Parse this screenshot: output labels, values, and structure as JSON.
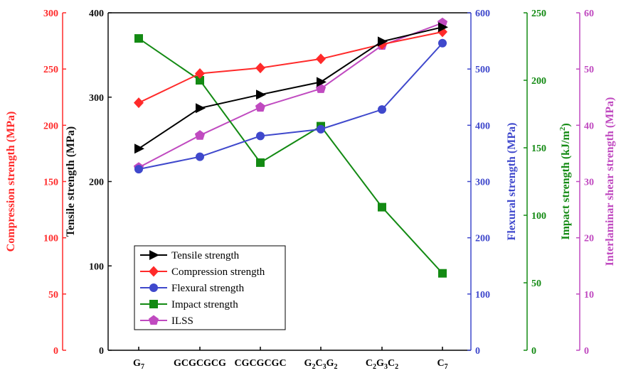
{
  "chart_data": {
    "type": "line",
    "categories": [
      "G",
      "GCGCGCG",
      "CGCGCGC",
      "G2C3G2",
      "C2G3C2",
      "C"
    ],
    "category_labels": [
      [
        {
          "t": "G",
          "s": false
        },
        {
          "t": "7",
          "s": true
        }
      ],
      [
        {
          "t": "GCGCGCG",
          "s": false
        }
      ],
      [
        {
          "t": "CGCGCGC",
          "s": false
        }
      ],
      [
        {
          "t": "G",
          "s": false
        },
        {
          "t": "2",
          "s": true
        },
        {
          "t": "C",
          "s": false
        },
        {
          "t": "3",
          "s": true
        },
        {
          "t": "G",
          "s": false
        },
        {
          "t": "2",
          "s": true
        }
      ],
      [
        {
          "t": "C",
          "s": false
        },
        {
          "t": "2",
          "s": true
        },
        {
          "t": "G",
          "s": false
        },
        {
          "t": "3",
          "s": true
        },
        {
          "t": "C",
          "s": false
        },
        {
          "t": "2",
          "s": true
        }
      ],
      [
        {
          "t": "C",
          "s": false
        },
        {
          "t": "7",
          "s": true
        }
      ]
    ],
    "axes": [
      {
        "id": "comp",
        "label": "Compression strength (MPa)",
        "color": "#ff2a2a",
        "min": 0,
        "max": 300,
        "ticks": [
          0,
          50,
          100,
          150,
          200,
          250,
          300
        ],
        "side": "left"
      },
      {
        "id": "tens",
        "label": "Tensile strength (MPa)",
        "color": "#111111",
        "min": 0,
        "max": 400,
        "ticks": [
          0,
          100,
          200,
          300,
          400
        ],
        "side": "left"
      },
      {
        "id": "flex",
        "label": "Flexural strength (MPa)",
        "color": "#3f48cc",
        "min": 0,
        "max": 600,
        "ticks": [
          0,
          100,
          200,
          300,
          400,
          500,
          600
        ],
        "side": "right"
      },
      {
        "id": "imp",
        "label": "Impact strength (kJ/m",
        "label_sup": "2",
        "label_tail": ")",
        "color": "#138a13",
        "min": 0,
        "max": 250,
        "ticks": [
          0,
          50,
          100,
          150,
          200,
          250
        ],
        "side": "right"
      },
      {
        "id": "ilss",
        "label": "Interlaminar shear strength (MPa)",
        "color": "#c04ac0",
        "min": 0,
        "max": 60,
        "ticks": [
          0,
          10,
          20,
          30,
          40,
          50,
          60
        ],
        "side": "right"
      }
    ],
    "series": [
      {
        "name": "Tensile strength",
        "axis": "tens",
        "color": "#000000",
        "marker": "triangle-right",
        "values": [
          239,
          287,
          303,
          318,
          366,
          383
        ]
      },
      {
        "name": "Compression strength",
        "axis": "comp",
        "color": "#ff2a2a",
        "marker": "diamond",
        "values": [
          220,
          246,
          251,
          259,
          272,
          283
        ]
      },
      {
        "name": "Flexural strength",
        "axis": "flex",
        "color": "#3f48cc",
        "marker": "circle",
        "values": [
          322,
          344,
          381,
          393,
          428,
          546
        ]
      },
      {
        "name": "Impact strength",
        "axis": "imp",
        "color": "#138a13",
        "marker": "square",
        "values": [
          231,
          200,
          139,
          166,
          106,
          57
        ]
      },
      {
        "name": "ILSS",
        "axis": "ilss",
        "color": "#c04ac0",
        "marker": "pentagon",
        "values": [
          32.5,
          38.2,
          43.2,
          46.5,
          54.2,
          58.2
        ]
      }
    ],
    "legend_position": "bottom-left",
    "grid": false
  }
}
